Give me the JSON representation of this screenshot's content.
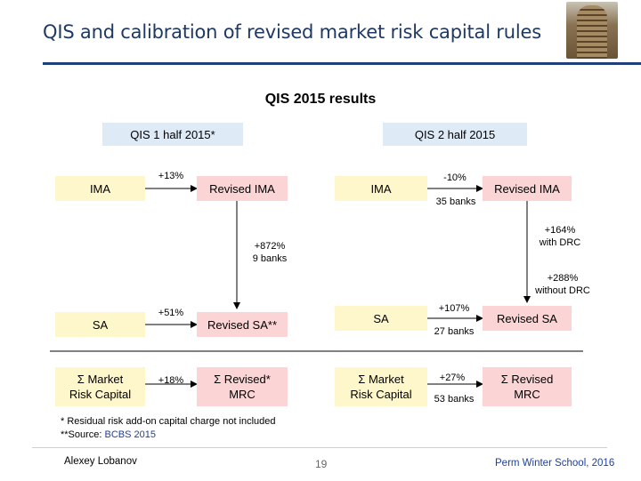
{
  "header": {
    "title": "QIS and calibration of revised market risk capital rules"
  },
  "slide": {
    "subtitle": "QIS 2015 results",
    "qis1_header": "QIS 1 half 2015*",
    "qis2_header": "QIS 2 half 2015",
    "left": {
      "ima": "IMA",
      "sa": "SA",
      "mrc_line1": "Σ Market",
      "mrc_line2": "Risk Capital",
      "revised_ima": "Revised IMA",
      "revised_sa": "Revised SA**",
      "revised_mrc_line1": "Σ Revised*",
      "revised_mrc_line2": "MRC",
      "pct_ima": "+13%",
      "pct_sa": "+51%",
      "pct_mrc": "+18%",
      "cross_line1": "+872%",
      "cross_line2": "9 banks"
    },
    "right": {
      "ima": "IMA",
      "sa": "SA",
      "mrc_line1": "Σ Market",
      "mrc_line2": "Risk Capital",
      "revised_ima": "Revised IMA",
      "revised_sa": "Revised SA",
      "revised_mrc_line1": "Σ Revised",
      "revised_mrc_line2": "MRC",
      "pct_ima": "-10%",
      "banks_ima": "35 banks",
      "pct_sa": "+107%",
      "banks_sa": "27 banks",
      "pct_mrc": "+27%",
      "banks_mrc": "53 banks",
      "drc_with_1": "+164%",
      "drc_with_2": "with DRC",
      "drc_without_1": "+288%",
      "drc_without_2": "without DRC"
    },
    "footnote1": "* Residual risk add-on capital charge not included",
    "footnote2_prefix": "**Source: ",
    "footnote2_source": "BCBS 2015"
  },
  "footer": {
    "author": "Alexey Lobanov",
    "page": "19",
    "event": "Perm Winter School, 2016"
  },
  "colors": {
    "title": "#1f3864",
    "header_box": "#deeaf6",
    "input_box": "#fff7cc",
    "output_box": "#fbd5d5",
    "source_link": "#1f3f9a"
  }
}
